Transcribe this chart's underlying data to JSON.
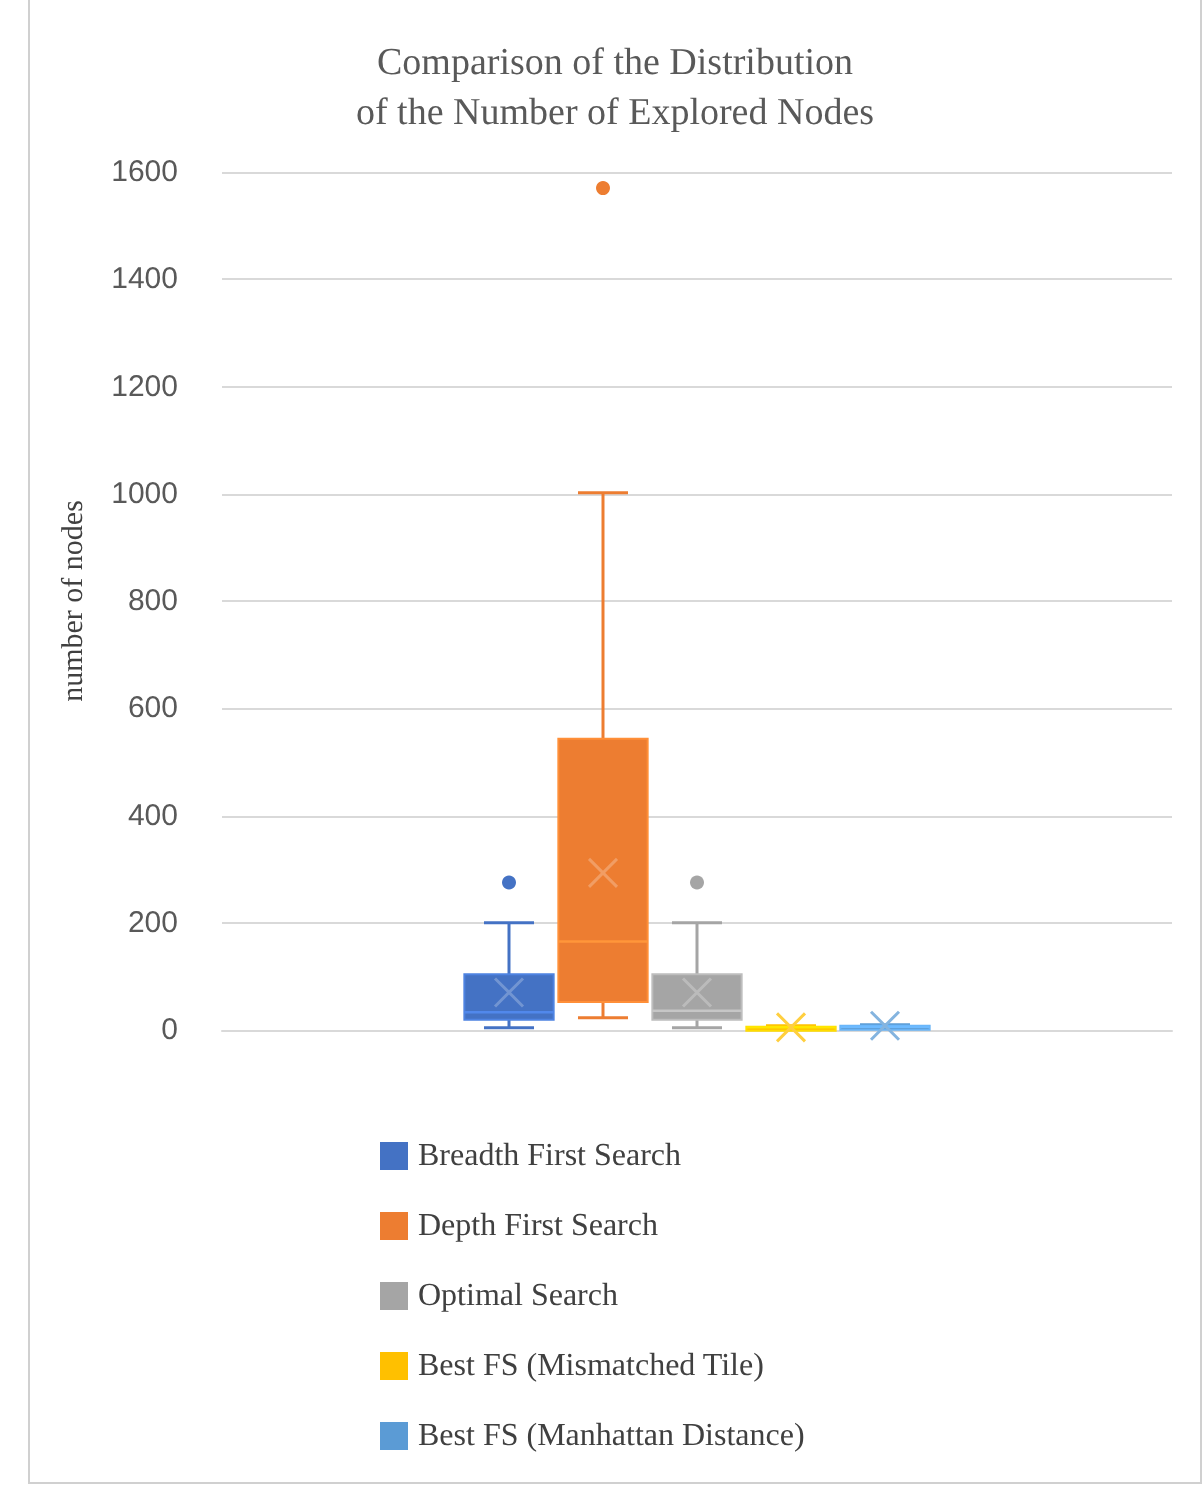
{
  "chart_data": {
    "type": "box",
    "title": "Comparison of the Distribution\nof the Number of Explored Nodes",
    "ylabel": "number of nodes",
    "categories": [
      null
    ],
    "series": [
      {
        "name": "Breadth First Search",
        "color": "#4472c4",
        "boxes": [
          {
            "low": 4,
            "q1": 19,
            "median": 33,
            "q3": 104,
            "high": 200,
            "mean": 70,
            "outliers": [
              275
            ]
          }
        ]
      },
      {
        "name": "Depth First Search",
        "color": "#ed7d31",
        "boxes": [
          {
            "low": 23,
            "q1": 52,
            "median": 165,
            "q3": 543,
            "high": 1002,
            "mean": 293,
            "outliers": [
              1570
            ]
          }
        ]
      },
      {
        "name": "Optimal Search",
        "color": "#a5a5a5",
        "boxes": [
          {
            "low": 4,
            "q1": 19,
            "median": 36,
            "q3": 104,
            "high": 200,
            "mean": 70,
            "outliers": [
              275
            ]
          }
        ]
      },
      {
        "name": "Best FS (Mismatched Tile)",
        "color": "#ffc000",
        "boxes": [
          {
            "low": 2,
            "q1": 4,
            "median": 5,
            "q3": 6,
            "high": 8,
            "mean": 5
          }
        ]
      },
      {
        "name": "Best FS (Manhattan Distance)",
        "color": "#5b9bd5",
        "boxes": [
          {
            "low": 3,
            "q1": 5,
            "median": 6,
            "q3": 8,
            "high": 10,
            "mean": 8
          }
        ]
      }
    ],
    "ylim": [
      0,
      1600
    ],
    "yticks": [
      0,
      200,
      400,
      600,
      800,
      1000,
      1200,
      1400,
      1600
    ],
    "grid": "y",
    "legend": "bottom"
  }
}
